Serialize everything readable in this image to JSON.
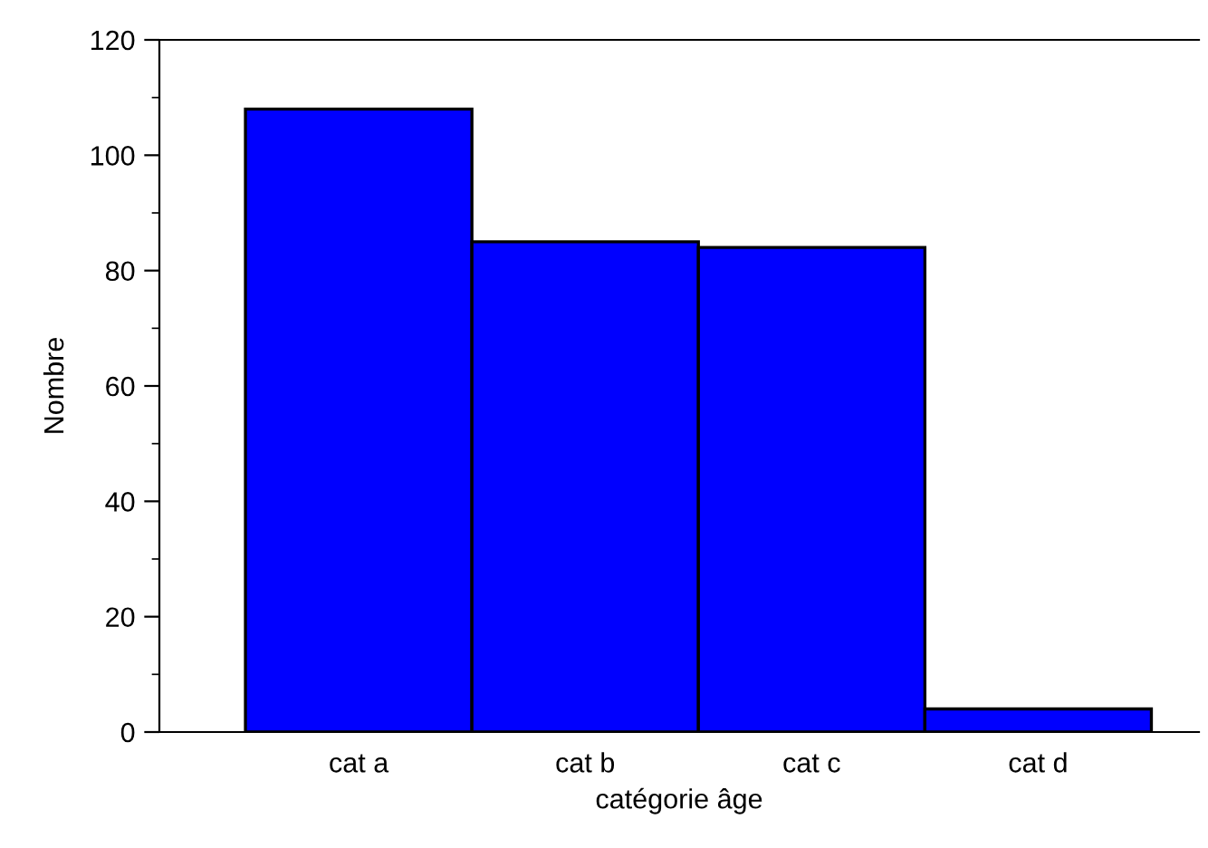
{
  "chart_data": {
    "type": "bar",
    "categories": [
      "cat a",
      "cat b",
      "cat c",
      "cat d"
    ],
    "values": [
      108,
      85,
      84,
      4
    ],
    "color": "#0000ff",
    "xlabel": "catégorie âge",
    "ylabel": "Nombre",
    "ylim": [
      0,
      120
    ],
    "yticks": [
      0,
      20,
      40,
      60,
      80,
      100,
      120
    ],
    "grid": false,
    "legend": false
  }
}
